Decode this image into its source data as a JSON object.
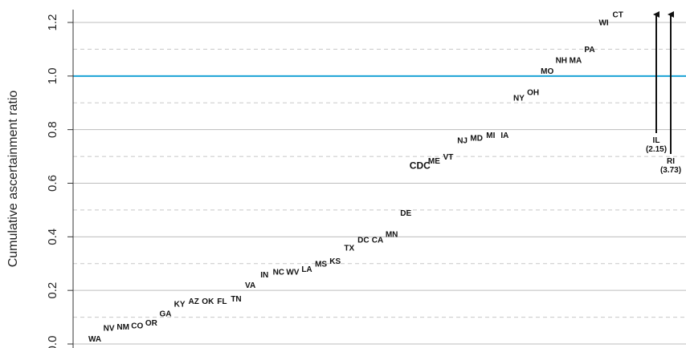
{
  "chart_data": {
    "type": "scatter",
    "title": "",
    "xlabel": "",
    "ylabel": "Cumulative ascertainment ratio",
    "ylim": [
      0.0,
      1.25
    ],
    "yticks": [
      0.0,
      0.2,
      0.4,
      0.6,
      0.8,
      1.0,
      1.2
    ],
    "ytick_labels": [
      "0.0",
      "0.2",
      "0.4",
      "0.6",
      "0.8",
      "1.0",
      "1.2"
    ],
    "minor_gridlines": [
      0.1,
      0.3,
      0.5,
      0.7,
      0.9,
      1.1
    ],
    "reference_line": {
      "y": 1.0,
      "color": "#1ba3d6"
    },
    "highlight_color": "#1ba3d6",
    "states": [
      {
        "label": "WA",
        "rank": 1,
        "value": 0.0
      },
      {
        "label": "NV",
        "rank": 2,
        "value": 0.04
      },
      {
        "label": "NM",
        "rank": 3,
        "value": 0.045
      },
      {
        "label": "CO",
        "rank": 4,
        "value": 0.05
      },
      {
        "label": "OR",
        "rank": 5,
        "value": 0.06
      },
      {
        "label": "GA",
        "rank": 6,
        "value": 0.095
      },
      {
        "label": "KY",
        "rank": 7,
        "value": 0.13
      },
      {
        "label": "AZ",
        "rank": 8,
        "value": 0.14
      },
      {
        "label": "OK",
        "rank": 9,
        "value": 0.14
      },
      {
        "label": "FL",
        "rank": 10,
        "value": 0.14
      },
      {
        "label": "TN",
        "rank": 11,
        "value": 0.15
      },
      {
        "label": "VA",
        "rank": 12,
        "value": 0.2
      },
      {
        "label": "IN",
        "rank": 13,
        "value": 0.24
      },
      {
        "label": "NC",
        "rank": 14,
        "value": 0.25
      },
      {
        "label": "WV",
        "rank": 15,
        "value": 0.25
      },
      {
        "label": "LA",
        "rank": 16,
        "value": 0.26
      },
      {
        "label": "MS",
        "rank": 17,
        "value": 0.28
      },
      {
        "label": "KS",
        "rank": 18,
        "value": 0.29
      },
      {
        "label": "TX",
        "rank": 19,
        "value": 0.34
      },
      {
        "label": "DC",
        "rank": 20,
        "value": 0.37
      },
      {
        "label": "CA",
        "rank": 21,
        "value": 0.37
      },
      {
        "label": "MN",
        "rank": 22,
        "value": 0.39
      },
      {
        "label": "DE",
        "rank": 23,
        "value": 0.47
      },
      {
        "label": "CDC",
        "rank": 24,
        "value": 0.645,
        "highlight": true
      },
      {
        "label": "ME",
        "rank": 25,
        "value": 0.665
      },
      {
        "label": "VT",
        "rank": 26,
        "value": 0.68
      },
      {
        "label": "NJ",
        "rank": 27,
        "value": 0.74
      },
      {
        "label": "MD",
        "rank": 28,
        "value": 0.75
      },
      {
        "label": "MI",
        "rank": 29,
        "value": 0.76
      },
      {
        "label": "IA",
        "rank": 30,
        "value": 0.76
      },
      {
        "label": "NY",
        "rank": 31,
        "value": 0.9
      },
      {
        "label": "OH",
        "rank": 32,
        "value": 0.92
      },
      {
        "label": "MO",
        "rank": 33,
        "value": 1.0
      },
      {
        "label": "NH",
        "rank": 34,
        "value": 1.04
      },
      {
        "label": "MA",
        "rank": 35,
        "value": 1.04
      },
      {
        "label": "PA",
        "rank": 36,
        "value": 1.08
      },
      {
        "label": "WI",
        "rank": 37,
        "value": 1.18
      },
      {
        "label": "CT",
        "rank": 38,
        "value": 1.21
      }
    ],
    "offscale": [
      {
        "label": "IL",
        "value_label": "(2.15)",
        "rank": 39,
        "value": 2.15
      },
      {
        "label": "RI",
        "value_label": "(3.73)",
        "rank": 40,
        "value": 3.73
      }
    ]
  }
}
